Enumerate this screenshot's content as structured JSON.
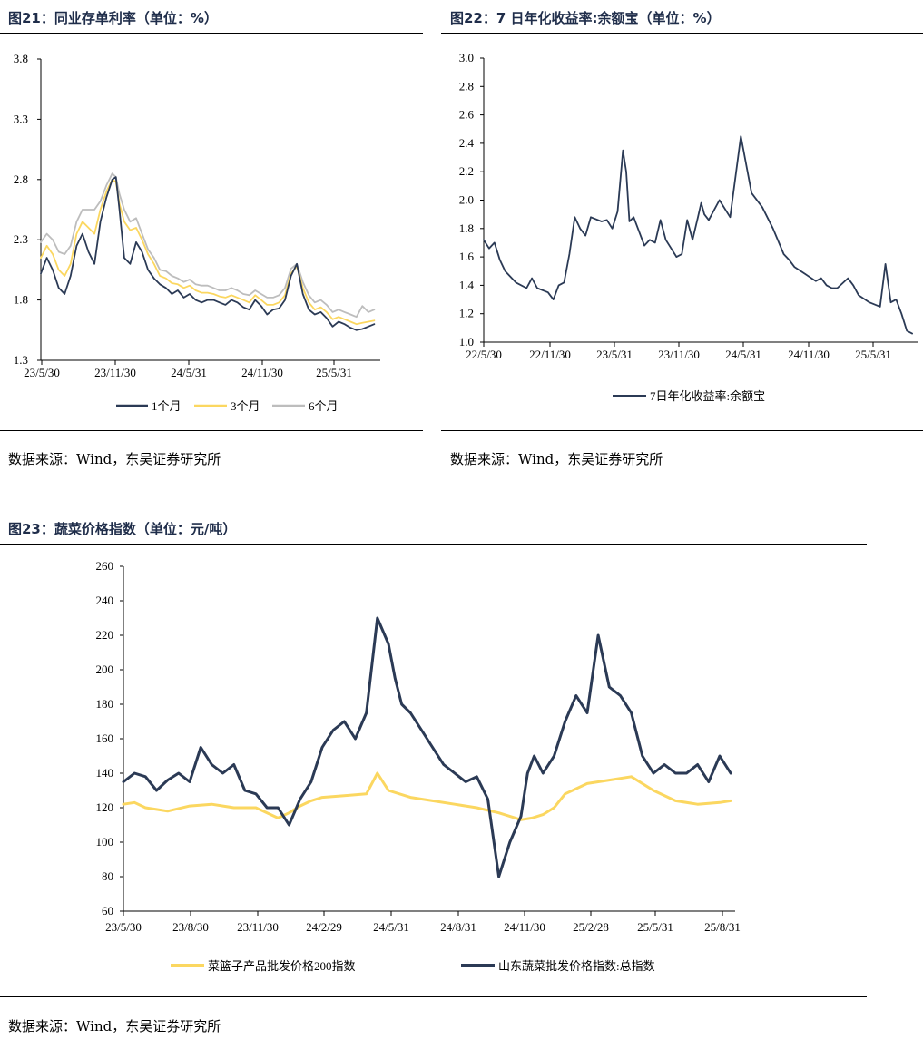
{
  "colors": {
    "navy": "#2b3a55",
    "yellow": "#fbd760",
    "gray": "#bdbdbd",
    "title": "#1f2d4a"
  },
  "chart_data": [
    {
      "type": "line",
      "title": "图21：同业存单利率（单位：%）",
      "source": "数据来源：Wind，东吴证券研究所",
      "ylim": [
        1.3,
        3.8
      ],
      "yticks": [
        "1.3",
        "1.8",
        "2.3",
        "2.8",
        "3.3",
        "3.8"
      ],
      "xticks": [
        "23/5/30",
        "23/11/30",
        "24/5/31",
        "24/11/30",
        "25/5/31"
      ],
      "x_range": [
        0,
        28.5
      ],
      "series": [
        {
          "name": "1个月",
          "color": "navy",
          "x": [
            0,
            0.5,
            1,
            1.5,
            2,
            2.5,
            3,
            3.5,
            4,
            4.5,
            5,
            5.5,
            6,
            6.3,
            6.6,
            7,
            7.5,
            8,
            8.5,
            9,
            9.5,
            10,
            10.5,
            11,
            11.5,
            12,
            12.5,
            13,
            13.5,
            14,
            14.5,
            15,
            15.5,
            16,
            16.5,
            17,
            17.5,
            18,
            18.5,
            19,
            19.5,
            20,
            20.5,
            21,
            21.5,
            22,
            22.5,
            23,
            23.5,
            24,
            24.5,
            25,
            25.5,
            26,
            26.5,
            27,
            27.5,
            28
          ],
          "values": [
            2.02,
            2.15,
            2.05,
            1.9,
            1.85,
            2.0,
            2.25,
            2.35,
            2.2,
            2.1,
            2.45,
            2.65,
            2.8,
            2.82,
            2.55,
            2.15,
            2.1,
            2.28,
            2.2,
            2.05,
            1.98,
            1.93,
            1.9,
            1.85,
            1.88,
            1.82,
            1.85,
            1.8,
            1.78,
            1.8,
            1.8,
            1.78,
            1.76,
            1.8,
            1.78,
            1.74,
            1.72,
            1.8,
            1.75,
            1.68,
            1.72,
            1.73,
            1.8,
            2.0,
            2.1,
            1.85,
            1.72,
            1.68,
            1.7,
            1.65,
            1.58,
            1.62,
            1.6,
            1.57,
            1.55,
            1.56,
            1.58,
            1.6
          ]
        },
        {
          "name": "3个月",
          "color": "yellow",
          "x": [
            0,
            0.5,
            1,
            1.5,
            2,
            2.5,
            3,
            3.5,
            4,
            4.5,
            5,
            5.5,
            6,
            6.3,
            6.6,
            7,
            7.5,
            8,
            8.5,
            9,
            9.5,
            10,
            10.5,
            11,
            11.5,
            12,
            12.5,
            13,
            13.5,
            14,
            14.5,
            15,
            15.5,
            16,
            16.5,
            17,
            17.5,
            18,
            18.5,
            19,
            19.5,
            20,
            20.5,
            21,
            21.5,
            22,
            22.5,
            23,
            23.5,
            24,
            24.5,
            25,
            25.5,
            26,
            26.5,
            27,
            27.5,
            28
          ],
          "values": [
            2.15,
            2.25,
            2.18,
            2.05,
            2.0,
            2.1,
            2.35,
            2.45,
            2.4,
            2.35,
            2.55,
            2.7,
            2.8,
            2.78,
            2.6,
            2.45,
            2.38,
            2.4,
            2.3,
            2.18,
            2.1,
            2.0,
            1.98,
            1.94,
            1.93,
            1.9,
            1.92,
            1.88,
            1.86,
            1.86,
            1.85,
            1.83,
            1.82,
            1.84,
            1.82,
            1.8,
            1.78,
            1.84,
            1.8,
            1.76,
            1.76,
            1.78,
            1.84,
            2.02,
            2.08,
            1.9,
            1.78,
            1.72,
            1.74,
            1.7,
            1.64,
            1.66,
            1.64,
            1.62,
            1.6,
            1.61,
            1.62,
            1.63
          ]
        },
        {
          "name": "6个月",
          "color": "gray",
          "x": [
            0,
            0.5,
            1,
            1.5,
            2,
            2.5,
            3,
            3.5,
            4,
            4.5,
            5,
            5.5,
            6,
            6.3,
            6.6,
            7,
            7.5,
            8,
            8.5,
            9,
            9.5,
            10,
            10.5,
            11,
            11.5,
            12,
            12.5,
            13,
            13.5,
            14,
            14.5,
            15,
            15.5,
            16,
            16.5,
            17,
            17.5,
            18,
            18.5,
            19,
            19.5,
            20,
            20.5,
            21,
            21.5,
            22,
            22.5,
            23,
            23.5,
            24,
            24.5,
            25,
            25.5,
            26,
            26.5,
            27,
            27.5,
            28
          ],
          "values": [
            2.28,
            2.35,
            2.3,
            2.2,
            2.18,
            2.25,
            2.45,
            2.55,
            2.55,
            2.55,
            2.62,
            2.75,
            2.85,
            2.82,
            2.68,
            2.55,
            2.45,
            2.48,
            2.35,
            2.22,
            2.15,
            2.05,
            2.04,
            2.0,
            1.98,
            1.95,
            1.97,
            1.93,
            1.92,
            1.92,
            1.9,
            1.88,
            1.88,
            1.9,
            1.88,
            1.85,
            1.84,
            1.88,
            1.85,
            1.82,
            1.82,
            1.84,
            1.9,
            2.06,
            2.1,
            1.95,
            1.84,
            1.78,
            1.8,
            1.76,
            1.7,
            1.72,
            1.7,
            1.68,
            1.66,
            1.75,
            1.7,
            1.72
          ]
        }
      ]
    },
    {
      "type": "line",
      "title": "图22：7 日年化收益率:余额宝（单位：%）",
      "source": "数据来源：Wind，东吴证券研究所",
      "ylim": [
        1.0,
        3.0
      ],
      "yticks": [
        "1.0",
        "1.2",
        "1.4",
        "1.6",
        "1.8",
        "2.0",
        "2.2",
        "2.4",
        "2.6",
        "2.8",
        "3.0"
      ],
      "xticks": [
        "22/5/30",
        "22/11/30",
        "23/5/31",
        "23/11/30",
        "24/5/31",
        "24/11/30",
        "25/5/31"
      ],
      "x_range": [
        0,
        40.5
      ],
      "series": [
        {
          "name": "7日年化收益率:余额宝",
          "color": "navy",
          "x": [
            0,
            0.5,
            1,
            1.5,
            2,
            3,
            4,
            4.5,
            5,
            6,
            6.5,
            7,
            7.5,
            8,
            8.5,
            9,
            9.5,
            10,
            11,
            11.5,
            12,
            12.5,
            13,
            13.3,
            13.6,
            14,
            15,
            15.5,
            16,
            16.5,
            17,
            17.5,
            18,
            18.5,
            19,
            19.5,
            20,
            20.3,
            20.6,
            21,
            22,
            23,
            24,
            25,
            26,
            27,
            28,
            28.5,
            29,
            30,
            31,
            31.5,
            32,
            32.5,
            33,
            34,
            34.5,
            35,
            36,
            37,
            37.5,
            38,
            38.5,
            39,
            39.5,
            40
          ],
          "values": [
            1.72,
            1.66,
            1.7,
            1.58,
            1.5,
            1.42,
            1.38,
            1.45,
            1.38,
            1.35,
            1.3,
            1.4,
            1.42,
            1.62,
            1.88,
            1.8,
            1.75,
            1.88,
            1.85,
            1.86,
            1.8,
            1.92,
            2.35,
            2.2,
            1.85,
            1.88,
            1.68,
            1.72,
            1.7,
            1.86,
            1.72,
            1.66,
            1.6,
            1.62,
            1.86,
            1.72,
            1.88,
            1.98,
            1.9,
            1.86,
            2.0,
            1.88,
            2.45,
            2.05,
            1.95,
            1.8,
            1.62,
            1.58,
            1.53,
            1.48,
            1.43,
            1.45,
            1.4,
            1.38,
            1.38,
            1.45,
            1.4,
            1.33,
            1.28,
            1.25,
            1.55,
            1.28,
            1.3,
            1.2,
            1.08,
            1.06
          ]
        }
      ]
    },
    {
      "type": "line",
      "title": "图23：蔬菜价格指数（单位：元/吨）",
      "source": "数据来源：Wind，东吴证券研究所",
      "ylim": [
        60,
        260
      ],
      "yticks": [
        "60",
        "80",
        "100",
        "120",
        "140",
        "160",
        "180",
        "200",
        "220",
        "240",
        "260"
      ],
      "xticks": [
        "23/5/30",
        "23/8/30",
        "23/11/30",
        "24/2/29",
        "24/5/31",
        "24/8/31",
        "24/11/30",
        "25/2/28",
        "25/5/31",
        "25/8/31"
      ],
      "x_range": [
        0,
        27.7
      ],
      "series": [
        {
          "name": "菜篮子产品批发价格200指数",
          "color": "yellow",
          "x": [
            0,
            0.5,
            1,
            1.5,
            2,
            3,
            4,
            5,
            6,
            7,
            7.5,
            8,
            8.5,
            9,
            10,
            11,
            11.5,
            12,
            13,
            14,
            15,
            16,
            17,
            18,
            18.5,
            19,
            19.5,
            20,
            21,
            22,
            23,
            24,
            25,
            26,
            27,
            27.5
          ],
          "values": [
            122,
            123,
            120,
            119,
            118,
            121,
            122,
            120,
            120,
            114,
            117,
            121,
            124,
            126,
            127,
            128,
            140,
            130,
            126,
            124,
            122,
            120,
            117,
            113,
            114,
            116,
            120,
            128,
            134,
            136,
            138,
            130,
            124,
            122,
            123,
            124
          ]
        },
        {
          "name": "山东蔬菜批发价格指数:总指数",
          "color": "navy",
          "x": [
            0,
            0.5,
            1,
            1.5,
            2,
            2.5,
            3,
            3.5,
            4,
            4.5,
            5,
            5.5,
            6,
            6.5,
            7,
            7.5,
            8,
            8.5,
            9,
            9.5,
            10,
            10.5,
            11,
            11.5,
            12,
            12.3,
            12.6,
            13,
            13.5,
            14,
            14.5,
            15,
            15.5,
            16,
            16.5,
            17,
            17.5,
            18,
            18.3,
            18.6,
            19,
            19.5,
            20,
            20.5,
            21,
            21.5,
            22,
            22.5,
            23,
            23.5,
            24,
            24.5,
            25,
            25.5,
            26,
            26.5,
            27,
            27.5
          ],
          "values": [
            135,
            140,
            138,
            130,
            136,
            140,
            135,
            155,
            145,
            140,
            145,
            130,
            128,
            120,
            120,
            110,
            125,
            135,
            155,
            165,
            170,
            160,
            175,
            230,
            215,
            195,
            180,
            175,
            165,
            155,
            145,
            140,
            135,
            138,
            125,
            80,
            100,
            115,
            140,
            150,
            140,
            150,
            170,
            185,
            175,
            220,
            190,
            185,
            175,
            150,
            140,
            145,
            140,
            140,
            145,
            135,
            150,
            140
          ]
        }
      ]
    }
  ],
  "legends": {
    "fig21": [
      "1个月",
      "3个月",
      "6个月"
    ],
    "fig22": [
      "7日年化收益率:余额宝"
    ],
    "fig23": [
      "菜篮子产品批发价格200指数",
      "山东蔬菜批发价格指数:总指数"
    ]
  },
  "titles": {
    "fig21": "图21：同业存单利率（单位：%）",
    "fig22": "图22：7 日年化收益率:余额宝（单位：%）",
    "fig23": "图23：蔬菜价格指数（单位：元/吨）"
  },
  "sources": {
    "fig21": "数据来源：Wind，东吴证券研究所",
    "fig22": "数据来源：Wind，东吴证券研究所",
    "fig23": "数据来源：Wind，东吴证券研究所"
  }
}
